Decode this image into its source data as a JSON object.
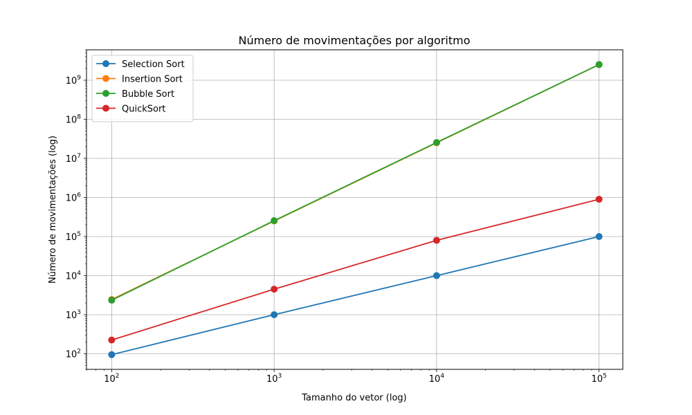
{
  "chart_data": {
    "type": "line",
    "title": "Número de movimentações por algoritmo",
    "xlabel": "Tamanho do vetor (log)",
    "ylabel": "Número de movimentações (log)",
    "xscale": "log",
    "yscale": "log",
    "xlim": [
      70,
      140000
    ],
    "ylim": [
      40,
      6000000000
    ],
    "grid": true,
    "legend_position": "top-left",
    "x": [
      100,
      1000,
      10000,
      100000
    ],
    "x_ticks": [
      {
        "value": 100,
        "base": "10",
        "exp": "2"
      },
      {
        "value": 1000,
        "base": "10",
        "exp": "3"
      },
      {
        "value": 10000,
        "base": "10",
        "exp": "4"
      },
      {
        "value": 100000,
        "base": "10",
        "exp": "5"
      }
    ],
    "y_ticks": [
      {
        "value": 100,
        "base": "10",
        "exp": "2"
      },
      {
        "value": 1000,
        "base": "10",
        "exp": "3"
      },
      {
        "value": 10000,
        "base": "10",
        "exp": "4"
      },
      {
        "value": 100000,
        "base": "10",
        "exp": "5"
      },
      {
        "value": 1000000,
        "base": "10",
        "exp": "6"
      },
      {
        "value": 10000000,
        "base": "10",
        "exp": "7"
      },
      {
        "value": 100000000,
        "base": "10",
        "exp": "8"
      },
      {
        "value": 1000000000,
        "base": "10",
        "exp": "9"
      }
    ],
    "series": [
      {
        "name": "Selection Sort",
        "color": "#1f77b4",
        "values": [
          95,
          1000,
          10000,
          100000
        ]
      },
      {
        "name": "Insertion Sort",
        "color": "#ff7f0e",
        "values": [
          2450,
          250000,
          25000000,
          2500000000
        ]
      },
      {
        "name": "Bubble Sort",
        "color": "#2ca02c",
        "values": [
          2350,
          255000,
          25500000,
          2520000000
        ]
      },
      {
        "name": "QuickSort",
        "color": "#d62728",
        "values": [
          225,
          4500,
          80000,
          900000
        ]
      }
    ]
  }
}
